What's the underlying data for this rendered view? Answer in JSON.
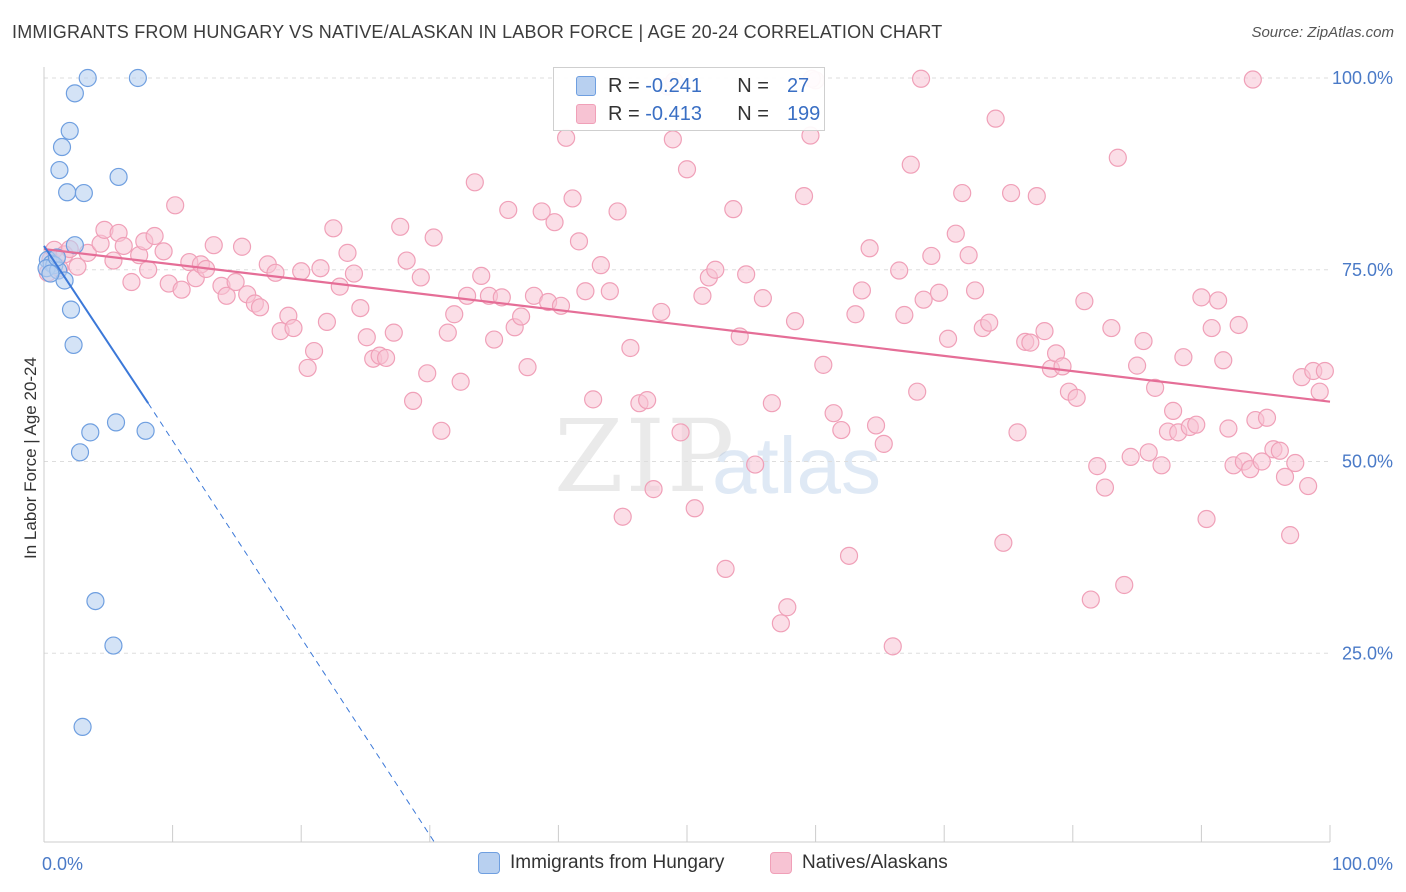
{
  "title": "IMMIGRANTS FROM HUNGARY VS NATIVE/ALASKAN IN LABOR FORCE | AGE 20-24 CORRELATION CHART",
  "source": "Source: ZipAtlas.com",
  "watermark": {
    "zip": "ZIP",
    "atlas": "atlas"
  },
  "legend": {
    "rows": [
      {
        "r_label": "R =",
        "r_value": "-0.241",
        "n_label": "N =",
        "n_value": "27"
      },
      {
        "r_label": "R =",
        "r_value": "-0.413",
        "n_label": "N =",
        "n_value": "199"
      }
    ]
  },
  "chart_data": {
    "type": "scatter",
    "title": "IMMIGRANTS FROM HUNGARY VS NATIVE/ALASKAN IN LABOR FORCE | AGE 20-24 CORRELATION CHART",
    "xlabel": "",
    "ylabel": "In Labor Force | Age 20-24",
    "xlim": [
      0,
      100
    ],
    "ylim": [
      0,
      102
    ],
    "x_tick_labels": [
      "0.0%",
      "100.0%"
    ],
    "y_ticks": [
      25,
      50,
      75,
      100
    ],
    "y_tick_labels": [
      "25.0%",
      "50.0%",
      "75.0%",
      "100.0%"
    ],
    "grid": true,
    "legend_position": "top-center",
    "colors": {
      "hungary_fill": "#b8d0f0",
      "hungary_stroke": "#6f9fe0",
      "hungary_line": "#3b78d8",
      "native_fill": "#f7c3d3",
      "native_stroke": "#f0a0b8",
      "native_line": "#e56e97",
      "grid": "#dddddd",
      "tick_label": "#4a7ac7"
    },
    "series": [
      {
        "name": "Immigrants from Hungary",
        "r": -0.241,
        "n": 27,
        "trend": {
          "x": [
            0,
            8.1
          ],
          "y": [
            78.1,
            57.6
          ]
        },
        "trend_extension": {
          "x": [
            8.1,
            30.5
          ],
          "y": [
            57.6,
            0
          ]
        },
        "points": [
          [
            3.4,
            100.0
          ],
          [
            7.3,
            100.0
          ],
          [
            2.4,
            98.0
          ],
          [
            2.0,
            93.1
          ],
          [
            1.4,
            91.0
          ],
          [
            1.2,
            88.0
          ],
          [
            5.8,
            87.1
          ],
          [
            1.8,
            85.1
          ],
          [
            3.1,
            85.0
          ],
          [
            2.4,
            78.2
          ],
          [
            0.3,
            76.3
          ],
          [
            0.6,
            75.8
          ],
          [
            0.8,
            75.6
          ],
          [
            0.2,
            75.2
          ],
          [
            1.1,
            74.9
          ],
          [
            1.6,
            73.6
          ],
          [
            2.1,
            69.8
          ],
          [
            2.3,
            65.2
          ],
          [
            5.6,
            55.1
          ],
          [
            3.6,
            53.8
          ],
          [
            7.9,
            54.0
          ],
          [
            2.8,
            51.2
          ],
          [
            4.0,
            31.8
          ],
          [
            5.4,
            26.0
          ],
          [
            3.0,
            15.4
          ],
          [
            0.5,
            74.5
          ],
          [
            1.0,
            76.6
          ]
        ]
      },
      {
        "name": "Natives/Alaskans",
        "r": -0.413,
        "n": 199,
        "trend": {
          "x": [
            0,
            100
          ],
          "y": [
            77.7,
            57.8
          ]
        },
        "points": [
          [
            0.3,
            74.6
          ],
          [
            0.5,
            76.3
          ],
          [
            0.8,
            77.6
          ],
          [
            1.2,
            75.2
          ],
          [
            1.6,
            77.0
          ],
          [
            2.0,
            77.7
          ],
          [
            2.6,
            75.4
          ],
          [
            3.4,
            77.2
          ],
          [
            4.4,
            78.4
          ],
          [
            4.7,
            80.2
          ],
          [
            5.4,
            76.2
          ],
          [
            5.8,
            79.8
          ],
          [
            6.2,
            78.1
          ],
          [
            6.8,
            73.4
          ],
          [
            7.4,
            76.9
          ],
          [
            7.8,
            78.7
          ],
          [
            8.1,
            75.0
          ],
          [
            8.6,
            79.4
          ],
          [
            9.3,
            77.4
          ],
          [
            9.7,
            73.2
          ],
          [
            10.2,
            83.4
          ],
          [
            10.7,
            72.4
          ],
          [
            11.3,
            76.0
          ],
          [
            11.8,
            73.9
          ],
          [
            12.2,
            75.7
          ],
          [
            12.6,
            75.1
          ],
          [
            13.2,
            78.2
          ],
          [
            13.8,
            72.9
          ],
          [
            14.2,
            71.6
          ],
          [
            14.9,
            73.4
          ],
          [
            15.4,
            78.0
          ],
          [
            15.8,
            71.8
          ],
          [
            16.4,
            70.6
          ],
          [
            16.8,
            70.1
          ],
          [
            17.4,
            75.7
          ],
          [
            18.0,
            74.6
          ],
          [
            18.4,
            67.0
          ],
          [
            19.0,
            69.0
          ],
          [
            19.4,
            67.4
          ],
          [
            20.0,
            74.8
          ],
          [
            20.5,
            62.2
          ],
          [
            21.0,
            64.4
          ],
          [
            21.5,
            75.2
          ],
          [
            22.0,
            68.2
          ],
          [
            22.5,
            80.4
          ],
          [
            23.0,
            72.8
          ],
          [
            23.6,
            77.2
          ],
          [
            24.1,
            74.5
          ],
          [
            24.6,
            70.0
          ],
          [
            25.1,
            66.2
          ],
          [
            25.6,
            63.4
          ],
          [
            26.1,
            63.8
          ],
          [
            26.6,
            63.5
          ],
          [
            27.2,
            66.8
          ],
          [
            27.7,
            80.6
          ],
          [
            28.2,
            76.2
          ],
          [
            28.7,
            57.9
          ],
          [
            29.3,
            74.0
          ],
          [
            29.8,
            61.5
          ],
          [
            30.3,
            79.2
          ],
          [
            30.9,
            54.0
          ],
          [
            31.4,
            66.8
          ],
          [
            31.9,
            69.2
          ],
          [
            32.4,
            60.4
          ],
          [
            32.9,
            71.6
          ],
          [
            33.5,
            86.4
          ],
          [
            34.0,
            74.2
          ],
          [
            34.6,
            71.6
          ],
          [
            35.0,
            65.9
          ],
          [
            35.6,
            71.4
          ],
          [
            36.1,
            82.8
          ],
          [
            36.6,
            67.5
          ],
          [
            37.1,
            68.9
          ],
          [
            37.6,
            62.3
          ],
          [
            38.1,
            71.6
          ],
          [
            38.7,
            82.6
          ],
          [
            39.2,
            70.8
          ],
          [
            39.7,
            81.2
          ],
          [
            40.2,
            70.3
          ],
          [
            40.6,
            92.2
          ],
          [
            41.1,
            84.3
          ],
          [
            41.6,
            78.7
          ],
          [
            42.1,
            72.2
          ],
          [
            42.7,
            58.1
          ],
          [
            43.3,
            75.6
          ],
          [
            44.0,
            72.2
          ],
          [
            44.6,
            82.6
          ],
          [
            45.0,
            42.8
          ],
          [
            45.6,
            64.8
          ],
          [
            46.3,
            57.6
          ],
          [
            46.9,
            58.0
          ],
          [
            47.4,
            46.4
          ],
          [
            48.0,
            69.5
          ],
          [
            48.5,
            98.9
          ],
          [
            48.9,
            92.0
          ],
          [
            49.5,
            53.8
          ],
          [
            50.0,
            88.1
          ],
          [
            50.6,
            43.9
          ],
          [
            51.2,
            71.6
          ],
          [
            51.7,
            74.0
          ],
          [
            52.2,
            75.0
          ],
          [
            53.0,
            36.0
          ],
          [
            53.6,
            82.9
          ],
          [
            54.1,
            66.3
          ],
          [
            54.6,
            74.4
          ],
          [
            55.3,
            49.6
          ],
          [
            55.9,
            71.3
          ],
          [
            56.6,
            57.6
          ],
          [
            57.3,
            28.9
          ],
          [
            57.8,
            31.0
          ],
          [
            58.4,
            68.3
          ],
          [
            59.1,
            84.6
          ],
          [
            59.6,
            92.5
          ],
          [
            60.6,
            62.6
          ],
          [
            61.4,
            56.3
          ],
          [
            62.0,
            54.1
          ],
          [
            62.6,
            37.7
          ],
          [
            63.1,
            69.2
          ],
          [
            63.6,
            72.3
          ],
          [
            64.2,
            77.8
          ],
          [
            64.7,
            54.7
          ],
          [
            65.3,
            52.3
          ],
          [
            66.0,
            25.9
          ],
          [
            66.5,
            74.9
          ],
          [
            66.9,
            69.1
          ],
          [
            67.4,
            88.7
          ],
          [
            67.9,
            59.1
          ],
          [
            68.4,
            71.1
          ],
          [
            69.0,
            76.8
          ],
          [
            69.6,
            72.0
          ],
          [
            70.3,
            66.0
          ],
          [
            70.9,
            79.7
          ],
          [
            71.4,
            85.0
          ],
          [
            71.9,
            76.9
          ],
          [
            72.4,
            72.3
          ],
          [
            73.0,
            67.4
          ],
          [
            73.5,
            68.1
          ],
          [
            74.0,
            94.7
          ],
          [
            74.6,
            39.4
          ],
          [
            75.2,
            85.0
          ],
          [
            75.7,
            53.8
          ],
          [
            76.3,
            65.6
          ],
          [
            76.7,
            65.5
          ],
          [
            77.2,
            84.6
          ],
          [
            77.8,
            67.0
          ],
          [
            78.3,
            62.1
          ],
          [
            78.7,
            64.1
          ],
          [
            79.2,
            62.4
          ],
          [
            79.7,
            59.1
          ],
          [
            80.3,
            58.3
          ],
          [
            80.9,
            70.9
          ],
          [
            81.4,
            32.0
          ],
          [
            81.9,
            49.4
          ],
          [
            82.5,
            46.6
          ],
          [
            83.0,
            67.4
          ],
          [
            83.5,
            89.6
          ],
          [
            84.0,
            33.9
          ],
          [
            84.5,
            50.6
          ],
          [
            85.0,
            62.5
          ],
          [
            85.5,
            65.7
          ],
          [
            85.9,
            51.2
          ],
          [
            86.4,
            59.6
          ],
          [
            86.9,
            49.5
          ],
          [
            87.4,
            53.9
          ],
          [
            87.8,
            56.6
          ],
          [
            88.2,
            53.8
          ],
          [
            88.6,
            63.6
          ],
          [
            89.1,
            54.5
          ],
          [
            89.6,
            54.8
          ],
          [
            90.0,
            71.4
          ],
          [
            90.4,
            42.5
          ],
          [
            90.8,
            67.4
          ],
          [
            91.3,
            71.0
          ],
          [
            91.7,
            63.2
          ],
          [
            92.1,
            54.3
          ],
          [
            92.5,
            49.5
          ],
          [
            92.9,
            67.8
          ],
          [
            93.3,
            50.0
          ],
          [
            93.8,
            49.0
          ],
          [
            94.2,
            55.4
          ],
          [
            94.7,
            50.0
          ],
          [
            95.1,
            55.7
          ],
          [
            95.6,
            51.6
          ],
          [
            96.1,
            51.4
          ],
          [
            96.5,
            48.0
          ],
          [
            96.9,
            40.4
          ],
          [
            97.3,
            49.8
          ],
          [
            97.8,
            61.0
          ],
          [
            98.3,
            46.8
          ],
          [
            98.7,
            61.8
          ],
          [
            99.2,
            59.1
          ],
          [
            99.6,
            61.8
          ],
          [
            60.0,
            99.7
          ],
          [
            59.7,
            99.9
          ],
          [
            68.2,
            99.9
          ],
          [
            49.0,
            99.6
          ],
          [
            94.0,
            99.8
          ]
        ]
      }
    ]
  }
}
